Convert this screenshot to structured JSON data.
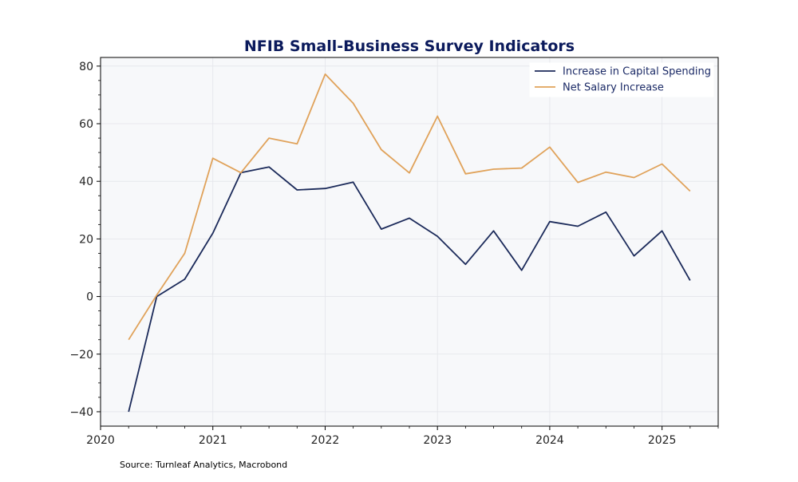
{
  "chart_data": {
    "type": "line",
    "title": "NFIB Small-Business Survey Indicators",
    "xlabel": "",
    "ylabel": "",
    "xlim": [
      2020.0,
      2025.5
    ],
    "ylim": [
      -45,
      83
    ],
    "x_ticks": [
      2020,
      2021,
      2022,
      2023,
      2024,
      2025
    ],
    "x_tick_labels": [
      "2020",
      "2021",
      "2022",
      "2023",
      "2024",
      "2025"
    ],
    "y_ticks": [
      -40,
      -20,
      0,
      20,
      40,
      60,
      80
    ],
    "y_tick_labels": [
      "−40",
      "−20",
      "0",
      "20",
      "40",
      "60",
      "80"
    ],
    "grid": true,
    "legend_position": "top-right",
    "x": [
      "2020-04",
      "2020-07",
      "2020-10",
      "2021-01",
      "2021-04",
      "2021-07",
      "2021-10",
      "2022-01",
      "2022-04",
      "2022-07",
      "2022-10",
      "2023-01",
      "2023-04",
      "2023-07",
      "2023-10",
      "2024-01",
      "2024-04",
      "2024-07",
      "2024-10",
      "2025-01",
      "2025-04"
    ],
    "series": [
      {
        "name": "Increase in Capital Spending",
        "color": "#1b2a5a",
        "values": [
          -40,
          0,
          6,
          22,
          43,
          45,
          37,
          37.5,
          39.7,
          23.4,
          27.2,
          20.9,
          11.2,
          22.8,
          9.1,
          26,
          24.4,
          29.3,
          14.1,
          22.8,
          5.6
        ]
      },
      {
        "name": "Net Salary Increase",
        "color": "#e0a25a",
        "values": [
          -15,
          0.5,
          15,
          48,
          43,
          55,
          53,
          77.2,
          67.1,
          51,
          42.9,
          62.6,
          42.6,
          44.2,
          44.6,
          51.9,
          39.6,
          43.2,
          41.3,
          46,
          36.6
        ]
      }
    ],
    "source_note": "Source: Turnleaf Analytics, Macrobond",
    "colors": {
      "title": "#0b1a5c",
      "plot_background": "#f7f8fa",
      "grid": "#e3e5ea"
    }
  }
}
